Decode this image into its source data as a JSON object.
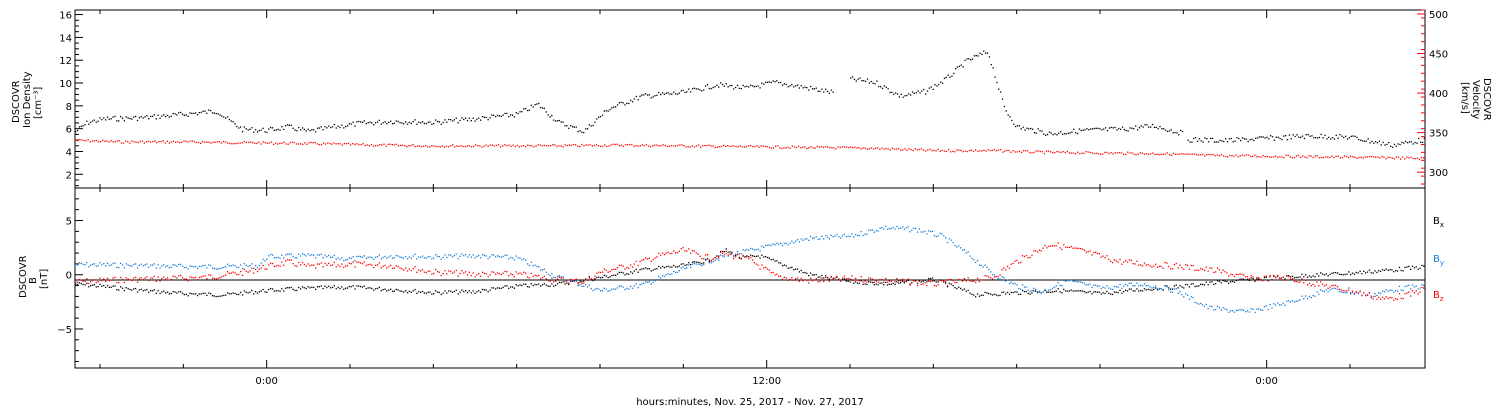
{
  "xlabel": "hours:minutes, Nov. 25, 2017 - Nov. 27, 2017",
  "chart_data": [
    {
      "type": "scatter",
      "panel": "density-velocity",
      "ylabel_left": [
        "DSCOVR",
        "Ion Density",
        "[cm⁻³]"
      ],
      "ylabel_right": [
        "DSCOVR",
        "Velocity",
        "[km/s]"
      ],
      "y_left_ticks": [
        "2",
        "4",
        "6",
        "8",
        "10",
        "12",
        "14",
        "16"
      ],
      "y_left_lim": [
        0.8,
        16.4
      ],
      "y_right_ticks": [
        "300",
        "350",
        "400",
        "450",
        "500"
      ],
      "y_right_lim": [
        280,
        505
      ],
      "x_hours_lim": [
        -4.6,
        27.8
      ],
      "x_ticks": [
        "0:00",
        "12:00",
        "0:00"
      ],
      "series": [
        {
          "color": "#000000",
          "axis": "left",
          "segments": [
            [
              [
                -4.6,
                5.8
              ],
              [
                -4.3,
                6.6
              ],
              [
                -3.9,
                6.9
              ],
              [
                -3.0,
                7.0
              ],
              [
                -2.0,
                7.3
              ],
              [
                -1.2,
                7.6
              ],
              [
                -1.0,
                7.0
              ],
              [
                -0.6,
                6.0
              ],
              [
                0.0,
                5.9
              ],
              [
                0.5,
                6.2
              ],
              [
                1.0,
                5.8
              ],
              [
                1.6,
                6.2
              ],
              [
                2.2,
                6.5
              ],
              [
                3.0,
                6.7
              ],
              [
                4.0,
                6.6
              ],
              [
                5.0,
                6.9
              ],
              [
                6.0,
                7.3
              ],
              [
                6.5,
                8.2
              ],
              [
                7.0,
                6.6
              ],
              [
                7.6,
                5.8
              ],
              [
                8.2,
                7.8
              ],
              [
                9.0,
                8.9
              ],
              [
                10.0,
                9.2
              ],
              [
                10.8,
                9.9
              ],
              [
                11.5,
                9.6
              ],
              [
                12.2,
                10.1
              ],
              [
                13.0,
                9.6
              ],
              [
                13.6,
                9.2
              ]
            ],
            [
              [
                14.0,
                10.4
              ],
              [
                14.6,
                10.1
              ],
              [
                15.2,
                8.9
              ],
              [
                15.8,
                9.3
              ],
              [
                16.3,
                10.4
              ],
              [
                16.8,
                12.0
              ],
              [
                17.3,
                12.8
              ],
              [
                17.7,
                7.8
              ],
              [
                18.0,
                6.2
              ],
              [
                18.8,
                5.6
              ],
              [
                19.6,
                5.9
              ],
              [
                20.5,
                6.0
              ],
              [
                21.3,
                6.3
              ],
              [
                22.0,
                5.6
              ]
            ],
            [
              [
                22.1,
                5.1
              ],
              [
                23.0,
                5.0
              ],
              [
                24.0,
                5.2
              ],
              [
                25.0,
                5.4
              ],
              [
                26.0,
                5.3
              ],
              [
                27.0,
                4.6
              ],
              [
                27.8,
                5.1
              ]
            ]
          ]
        },
        {
          "color": "#ff0000",
          "axis": "right",
          "segments": [
            [
              [
                -4.6,
                341
              ],
              [
                -3.5,
                339
              ],
              [
                -2.0,
                339
              ],
              [
                -0.5,
                338
              ],
              [
                1.0,
                337
              ],
              [
                2.5,
                335
              ],
              [
                4.0,
                334
              ],
              [
                5.5,
                334
              ],
              [
                7.0,
                334
              ],
              [
                8.5,
                335
              ],
              [
                10.0,
                334
              ],
              [
                11.5,
                333
              ],
              [
                13.0,
                332
              ],
              [
                14.5,
                331
              ],
              [
                16.0,
                328
              ],
              [
                17.5,
                328
              ],
              [
                18.5,
                326
              ],
              [
                20.0,
                325
              ],
              [
                21.5,
                324
              ],
              [
                22.5,
                322
              ],
              [
                24.0,
                321
              ],
              [
                25.5,
                320
              ],
              [
                27.0,
                319
              ],
              [
                27.8,
                318
              ]
            ]
          ]
        }
      ]
    },
    {
      "type": "scatter",
      "panel": "magnetic-field",
      "ylabel_left": [
        "DSCOVR",
        "B",
        "[nT]"
      ],
      "y_ticks": [
        "−5",
        "0",
        "5"
      ],
      "y_lim": [
        -8.6,
        8.0
      ],
      "x_hours_lim": [
        -4.6,
        27.8
      ],
      "x_ticks": [
        "0:00",
        "12:00",
        "0:00"
      ],
      "legend": [
        {
          "label": "B",
          "sub": "x",
          "color": "#000000"
        },
        {
          "label": "B",
          "sub": "y",
          "color": "#1a7ed8"
        },
        {
          "label": "B",
          "sub": "z",
          "color": "#ff0000"
        }
      ],
      "series": [
        {
          "color": "#000000",
          "segments": [
            [
              [
                -4.6,
                -0.8
              ],
              [
                -4.0,
                -1.0
              ],
              [
                -3.0,
                -1.4
              ],
              [
                -2.0,
                -1.7
              ],
              [
                -1.0,
                -1.8
              ],
              [
                0.0,
                -1.4
              ],
              [
                1.0,
                -1.2
              ],
              [
                2.0,
                -1.1
              ],
              [
                3.0,
                -1.3
              ],
              [
                4.0,
                -1.6
              ],
              [
                5.0,
                -1.5
              ],
              [
                6.0,
                -1.0
              ],
              [
                7.0,
                -0.8
              ],
              [
                8.0,
                -0.2
              ],
              [
                9.0,
                0.5
              ],
              [
                10.0,
                0.9
              ],
              [
                10.6,
                1.4
              ],
              [
                11.0,
                2.3
              ],
              [
                11.4,
                1.6
              ],
              [
                11.8,
                1.8
              ],
              [
                12.3,
                1.1
              ],
              [
                13.0,
                0.1
              ],
              [
                14.0,
                -0.6
              ],
              [
                15.0,
                -0.8
              ],
              [
                16.0,
                -0.4
              ],
              [
                17.0,
                -1.8
              ],
              [
                18.0,
                -1.6
              ],
              [
                19.0,
                -1.4
              ],
              [
                20.0,
                -1.7
              ],
              [
                21.0,
                -1.3
              ],
              [
                22.0,
                -1.0
              ],
              [
                23.0,
                -0.6
              ],
              [
                24.0,
                -0.3
              ],
              [
                25.0,
                0.0
              ],
              [
                26.0,
                0.2
              ],
              [
                27.0,
                0.5
              ],
              [
                27.8,
                0.8
              ]
            ]
          ]
        },
        {
          "color": "#1a7ed8",
          "segments": [
            [
              [
                -4.6,
                1.0
              ],
              [
                -3.0,
                0.9
              ],
              [
                -2.0,
                0.8
              ],
              [
                -1.0,
                0.8
              ],
              [
                -0.2,
                0.9
              ],
              [
                0.0,
                1.7
              ],
              [
                1.0,
                1.8
              ],
              [
                2.0,
                1.5
              ],
              [
                3.0,
                1.8
              ],
              [
                4.0,
                1.7
              ],
              [
                5.0,
                1.8
              ],
              [
                6.0,
                1.6
              ],
              [
                7.0,
                -0.2
              ],
              [
                8.0,
                -1.4
              ],
              [
                9.0,
                -0.9
              ],
              [
                10.0,
                0.6
              ],
              [
                11.0,
                1.8
              ],
              [
                12.0,
                2.6
              ],
              [
                13.0,
                3.4
              ],
              [
                14.0,
                3.6
              ],
              [
                14.8,
                4.4
              ],
              [
                15.6,
                4.2
              ],
              [
                16.2,
                3.6
              ],
              [
                16.8,
                2.0
              ],
              [
                17.4,
                0.2
              ],
              [
                18.0,
                -1.0
              ],
              [
                18.6,
                -1.5
              ],
              [
                19.2,
                -0.5
              ],
              [
                20.0,
                -1.2
              ],
              [
                21.0,
                -0.8
              ],
              [
                21.8,
                -1.4
              ],
              [
                22.6,
                -3.0
              ],
              [
                23.5,
                -3.4
              ],
              [
                24.5,
                -2.5
              ],
              [
                25.5,
                -1.3
              ],
              [
                26.5,
                -1.8
              ],
              [
                27.2,
                -1.2
              ],
              [
                27.8,
                -1.0
              ]
            ]
          ]
        },
        {
          "color": "#ff0000",
          "segments": [
            [
              [
                -4.6,
                -0.6
              ],
              [
                -3.5,
                -0.4
              ],
              [
                -2.5,
                -0.3
              ],
              [
                -1.5,
                -0.2
              ],
              [
                -0.5,
                0.3
              ],
              [
                0.0,
                0.8
              ],
              [
                0.5,
                1.2
              ],
              [
                1.0,
                0.8
              ],
              [
                2.0,
                1.0
              ],
              [
                3.0,
                0.9
              ],
              [
                4.0,
                0.3
              ],
              [
                5.0,
                0.1
              ],
              [
                6.0,
                0.1
              ],
              [
                7.0,
                -0.4
              ],
              [
                7.6,
                -0.6
              ],
              [
                8.0,
                0.3
              ],
              [
                8.8,
                1.0
              ],
              [
                9.4,
                1.8
              ],
              [
                10.0,
                2.3
              ],
              [
                10.6,
                1.6
              ],
              [
                11.0,
                2.0
              ],
              [
                11.6,
                1.4
              ],
              [
                12.2,
                -0.1
              ],
              [
                13.0,
                -0.5
              ],
              [
                14.0,
                -0.3
              ],
              [
                15.0,
                -0.5
              ],
              [
                16.0,
                -0.8
              ],
              [
                16.8,
                -0.5
              ],
              [
                17.4,
                -0.2
              ],
              [
                18.0,
                1.3
              ],
              [
                18.8,
                2.9
              ],
              [
                19.6,
                2.2
              ],
              [
                20.4,
                1.3
              ],
              [
                21.2,
                1.0
              ],
              [
                22.0,
                0.8
              ],
              [
                22.8,
                0.4
              ],
              [
                23.6,
                -0.3
              ],
              [
                24.4,
                -0.2
              ],
              [
                25.2,
                -0.8
              ],
              [
                26.0,
                -1.4
              ],
              [
                26.8,
                -2.2
              ],
              [
                27.4,
                -1.8
              ],
              [
                27.8,
                -1.2
              ]
            ]
          ]
        }
      ]
    }
  ]
}
